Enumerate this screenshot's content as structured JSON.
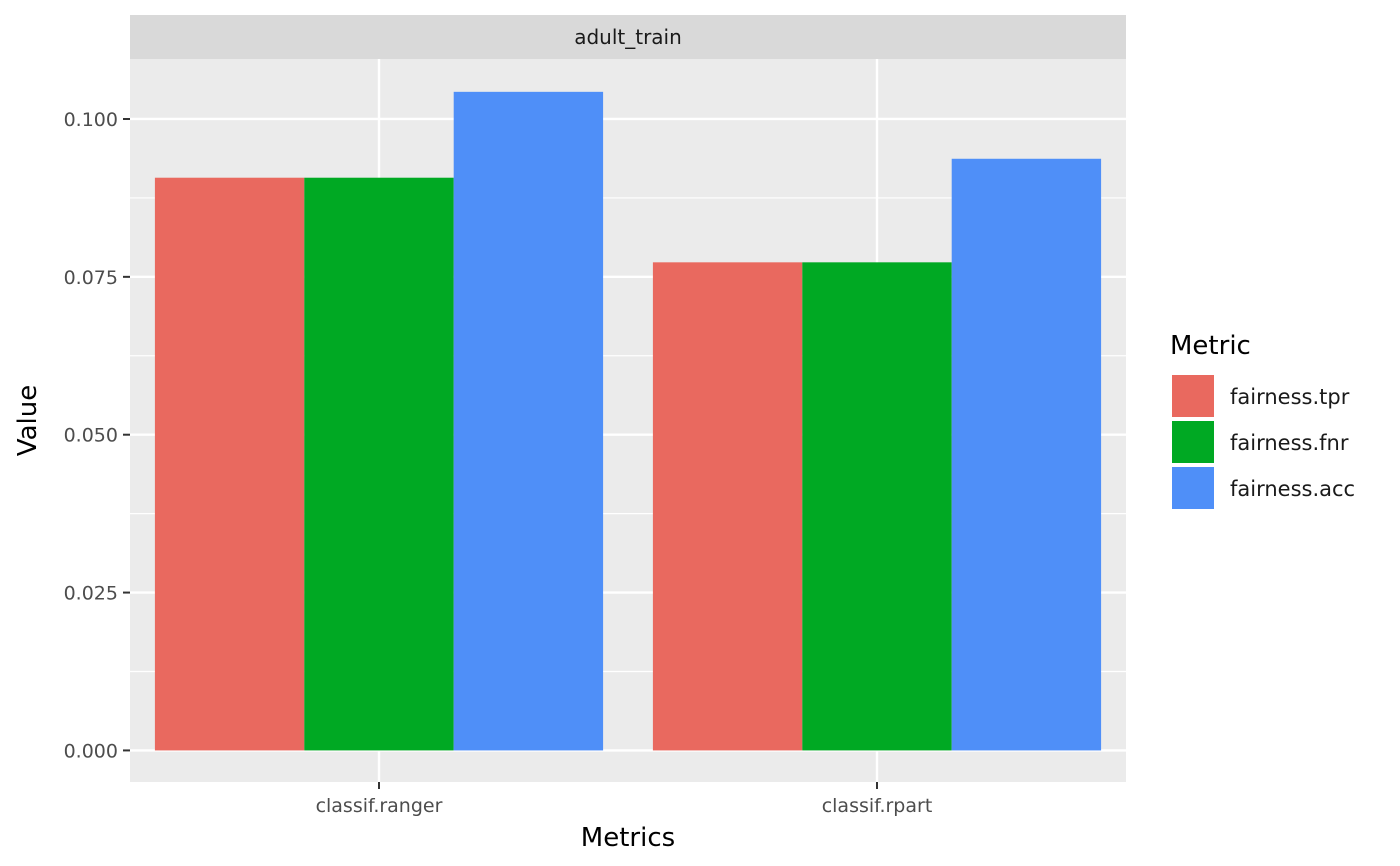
{
  "chart_data": {
    "type": "bar",
    "facet": "adult_train",
    "categories": [
      "classif.ranger",
      "classif.rpart"
    ],
    "series": [
      {
        "name": "fairness.tpr",
        "color": "#E9695F",
        "values": [
          0.0907,
          0.0773
        ]
      },
      {
        "name": "fairness.fnr",
        "color": "#00A923",
        "values": [
          0.0907,
          0.0773
        ]
      },
      {
        "name": "fairness.acc",
        "color": "#4F8FF8",
        "values": [
          0.1043,
          0.0937
        ]
      }
    ],
    "xlabel": "Metrics",
    "ylabel": "Value",
    "ylim": [
      -0.005,
      0.1095
    ],
    "yticks": [
      "0.000",
      "0.025",
      "0.050",
      "0.075",
      "0.100"
    ],
    "legend_title": "Metric",
    "legend_position": "right",
    "grid": true,
    "panel_background": "#EBEBEB",
    "strip_background": "#D9D9D9"
  }
}
